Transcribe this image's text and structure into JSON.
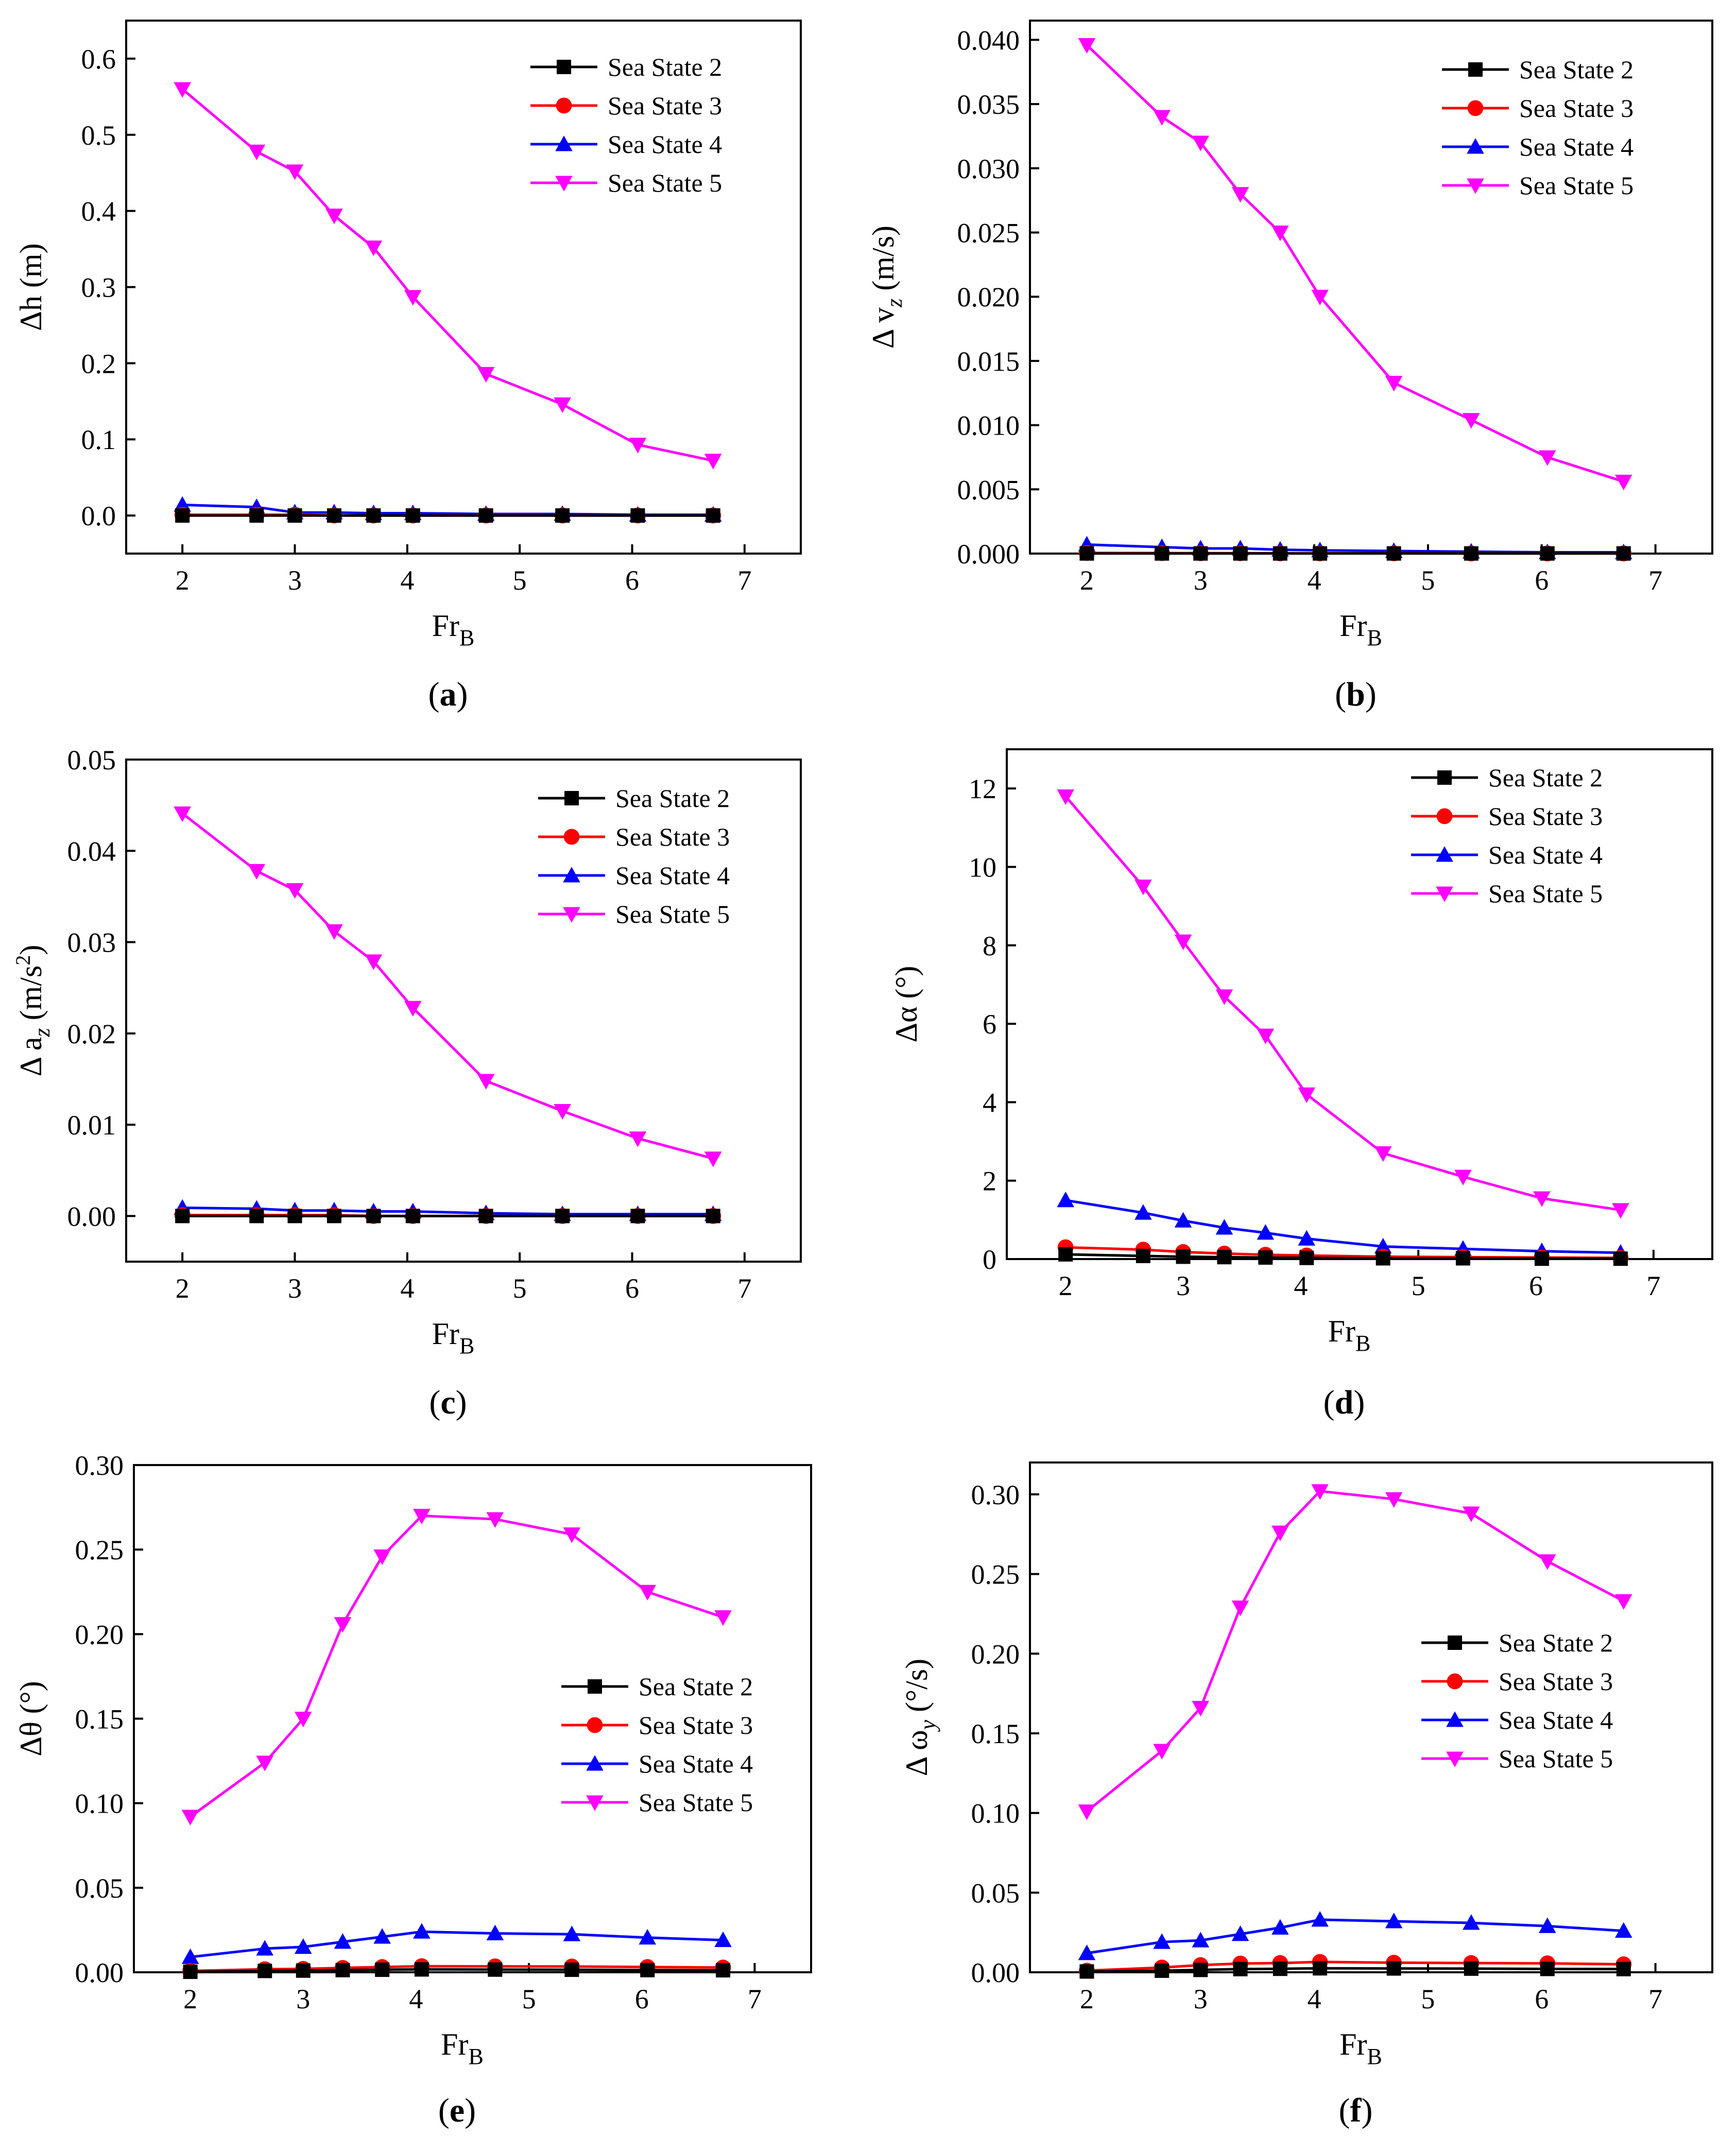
{
  "figure": {
    "legend_labels": [
      "Sea State 2",
      "Sea State 3",
      "Sea State 4",
      "Sea State 5"
    ],
    "series_colors": [
      "#000000",
      "#ff0000",
      "#0000ff",
      "#ff00ff"
    ],
    "series_markers": [
      "square",
      "circle",
      "triangle-up",
      "triangle-down"
    ]
  },
  "chart_data": [
    {
      "id": "a",
      "type": "line",
      "caption": "a",
      "xlabel": "Fr",
      "xlabel_sub": "B",
      "ylabel": "Δh (m)",
      "xlim": [
        1.5,
        7.5
      ],
      "xticks": [
        "2",
        "3",
        "4",
        "5",
        "6",
        "7"
      ],
      "ylim": [
        -0.05,
        0.65
      ],
      "yticks": [
        "0.0",
        "0.1",
        "0.2",
        "0.3",
        "0.4",
        "0.5",
        "0.6"
      ],
      "legend_position": "top-right",
      "x": [
        2.0,
        2.66,
        3.0,
        3.35,
        3.7,
        4.05,
        4.7,
        5.38,
        6.05,
        6.72
      ],
      "series": [
        {
          "name": "Sea State 2",
          "values": [
            0.0,
            0.0,
            0.0,
            0.0,
            0.0,
            0.0,
            0.0,
            0.0,
            0.0,
            0.0
          ]
        },
        {
          "name": "Sea State 3",
          "values": [
            0.001,
            0.001,
            0.001,
            0.0,
            0.0,
            0.0,
            0.0,
            0.0,
            0.0,
            0.0
          ]
        },
        {
          "name": "Sea State 4",
          "values": [
            0.014,
            0.011,
            0.004,
            0.004,
            0.003,
            0.003,
            0.002,
            0.002,
            0.001,
            0.001
          ]
        },
        {
          "name": "Sea State 5",
          "values": [
            0.56,
            0.478,
            0.452,
            0.394,
            0.352,
            0.287,
            0.186,
            0.146,
            0.093,
            0.072
          ]
        }
      ]
    },
    {
      "id": "b",
      "type": "line",
      "caption": "b",
      "xlabel": "Fr",
      "xlabel_sub": "B",
      "ylabel": "Δ v",
      "ylabel_sub": "z",
      "ylabel_suffix": " (m/s)",
      "xlim": [
        1.5,
        7.5
      ],
      "xticks": [
        "2",
        "3",
        "4",
        "5",
        "6",
        "7"
      ],
      "ylim": [
        0.0,
        0.0415
      ],
      "yticks": [
        "0.000",
        "0.005",
        "0.010",
        "0.015",
        "0.020",
        "0.025",
        "0.030",
        "0.035",
        "0.040"
      ],
      "legend_position": "top-right",
      "x": [
        2.0,
        2.66,
        3.0,
        3.35,
        3.7,
        4.05,
        4.7,
        5.38,
        6.05,
        6.72
      ],
      "series": [
        {
          "name": "Sea State 2",
          "values": [
            1e-05,
            1e-05,
            1e-05,
            1e-05,
            1e-05,
            1e-05,
            1e-05,
            1e-05,
            1e-05,
            1e-05
          ]
        },
        {
          "name": "Sea State 3",
          "values": [
            5e-05,
            4e-05,
            3e-05,
            3e-05,
            2e-05,
            2e-05,
            2e-05,
            1e-05,
            1e-05,
            1e-05
          ]
        },
        {
          "name": "Sea State 4",
          "values": [
            0.0007,
            0.0005,
            0.0004,
            0.0004,
            0.0003,
            0.00025,
            0.0002,
            0.00015,
            0.0001,
            0.0001
          ]
        },
        {
          "name": "Sea State 5",
          "values": [
            0.0396,
            0.034,
            0.032,
            0.028,
            0.025,
            0.02,
            0.0133,
            0.0104,
            0.0075,
            0.0056
          ]
        }
      ]
    },
    {
      "id": "c",
      "type": "line",
      "caption": "c",
      "xlabel": "Fr",
      "xlabel_sub": "B",
      "ylabel": "Δ a",
      "ylabel_sub": "z",
      "ylabel_suffix": " (m/s",
      "ylabel_sup": "2",
      "ylabel_close": ")",
      "xlim": [
        1.5,
        7.5
      ],
      "xticks": [
        "2",
        "3",
        "4",
        "5",
        "6",
        "7"
      ],
      "ylim": [
        -0.005,
        0.05
      ],
      "yticks": [
        "0.00",
        "0.01",
        "0.02",
        "0.03",
        "0.04",
        "0.05"
      ],
      "legend_position": "top-right",
      "x": [
        2.0,
        2.66,
        3.0,
        3.35,
        3.7,
        4.05,
        4.7,
        5.38,
        6.05,
        6.72
      ],
      "series": [
        {
          "name": "Sea State 2",
          "values": [
            0.0,
            0.0,
            0.0,
            0.0,
            0.0,
            0.0,
            0.0,
            0.0,
            0.0,
            0.0
          ]
        },
        {
          "name": "Sea State 3",
          "values": [
            0.0001,
            0.0001,
            0.0001,
            0.0001,
            0.0,
            0.0,
            0.0,
            0.0,
            0.0,
            0.0
          ]
        },
        {
          "name": "Sea State 4",
          "values": [
            0.0009,
            0.0008,
            0.0006,
            0.0006,
            0.0005,
            0.0005,
            0.0003,
            0.0002,
            0.0002,
            0.0002
          ]
        },
        {
          "name": "Sea State 5",
          "values": [
            0.0441,
            0.0378,
            0.0357,
            0.0312,
            0.0279,
            0.0228,
            0.0148,
            0.0115,
            0.0085,
            0.0063
          ]
        }
      ]
    },
    {
      "id": "d",
      "type": "line",
      "caption": "d",
      "xlabel": "Fr",
      "xlabel_sub": "B",
      "ylabel": "Δα (°)",
      "xlim": [
        1.5,
        7.5
      ],
      "xticks": [
        "2",
        "3",
        "4",
        "5",
        "6",
        "7"
      ],
      "ylim": [
        0,
        13
      ],
      "yticks": [
        "0",
        "2",
        "4",
        "6",
        "8",
        "10",
        "12"
      ],
      "legend_position": "top-right",
      "x": [
        2.0,
        2.66,
        3.0,
        3.35,
        3.7,
        4.05,
        4.7,
        5.38,
        6.05,
        6.72
      ],
      "series": [
        {
          "name": "Sea State 2",
          "values": [
            0.12,
            0.08,
            0.06,
            0.05,
            0.04,
            0.03,
            0.02,
            0.02,
            0.01,
            0.01
          ]
        },
        {
          "name": "Sea State 3",
          "values": [
            0.3,
            0.24,
            0.18,
            0.14,
            0.11,
            0.09,
            0.06,
            0.05,
            0.04,
            0.03
          ]
        },
        {
          "name": "Sea State 4",
          "values": [
            1.5,
            1.18,
            0.98,
            0.8,
            0.67,
            0.52,
            0.32,
            0.26,
            0.2,
            0.16
          ]
        },
        {
          "name": "Sea State 5",
          "values": [
            11.8,
            9.5,
            8.1,
            6.7,
            5.7,
            4.2,
            2.7,
            2.1,
            1.55,
            1.25
          ]
        }
      ]
    },
    {
      "id": "e",
      "type": "line",
      "caption": "e",
      "xlabel": "Fr",
      "xlabel_sub": "B",
      "ylabel": "Δθ (°)",
      "xlim": [
        1.5,
        7.5
      ],
      "xticks": [
        "2",
        "3",
        "4",
        "5",
        "6",
        "7"
      ],
      "ylim": [
        0.0,
        0.3
      ],
      "yticks": [
        "0.00",
        "0.05",
        "0.10",
        "0.15",
        "0.20",
        "0.25",
        "0.30"
      ],
      "legend_position": "center-right",
      "x": [
        2.0,
        2.66,
        3.0,
        3.35,
        3.7,
        4.05,
        4.7,
        5.38,
        6.05,
        6.72
      ],
      "series": [
        {
          "name": "Sea State 2",
          "values": [
            0.0003,
            0.0008,
            0.001,
            0.0013,
            0.0015,
            0.0017,
            0.0016,
            0.0015,
            0.0013,
            0.0012
          ]
        },
        {
          "name": "Sea State 3",
          "values": [
            0.0008,
            0.0018,
            0.002,
            0.0026,
            0.0031,
            0.0036,
            0.0035,
            0.0034,
            0.0031,
            0.0028
          ]
        },
        {
          "name": "Sea State 4",
          "values": [
            0.009,
            0.014,
            0.015,
            0.018,
            0.021,
            0.024,
            0.023,
            0.0225,
            0.0205,
            0.019
          ]
        },
        {
          "name": "Sea State 5",
          "values": [
            0.092,
            0.124,
            0.15,
            0.206,
            0.246,
            0.27,
            0.268,
            0.259,
            0.225,
            0.21
          ]
        }
      ]
    },
    {
      "id": "f",
      "type": "line",
      "caption": "f",
      "xlabel": "Fr",
      "xlabel_sub": "B",
      "ylabel": "Δ ω",
      "ylabel_sub": "y",
      "ylabel_suffix": " (°/s)",
      "xlim": [
        1.5,
        7.5
      ],
      "xticks": [
        "2",
        "3",
        "4",
        "5",
        "6",
        "7"
      ],
      "ylim": [
        0.0,
        0.32
      ],
      "yticks": [
        "0.00",
        "0.05",
        "0.10",
        "0.15",
        "0.20",
        "0.25",
        "0.30"
      ],
      "legend_position": "center-right",
      "x": [
        2.0,
        2.66,
        3.0,
        3.35,
        3.7,
        4.05,
        4.7,
        5.38,
        6.05,
        6.72
      ],
      "series": [
        {
          "name": "Sea State 2",
          "values": [
            0.0005,
            0.001,
            0.0015,
            0.002,
            0.0022,
            0.0025,
            0.0024,
            0.0023,
            0.0021,
            0.002
          ]
        },
        {
          "name": "Sea State 3",
          "values": [
            0.001,
            0.003,
            0.0045,
            0.0055,
            0.0058,
            0.0065,
            0.006,
            0.0058,
            0.0056,
            0.005
          ]
        },
        {
          "name": "Sea State 4",
          "values": [
            0.012,
            0.019,
            0.02,
            0.024,
            0.028,
            0.033,
            0.032,
            0.031,
            0.029,
            0.026
          ]
        },
        {
          "name": "Sea State 5",
          "values": [
            0.101,
            0.139,
            0.166,
            0.229,
            0.276,
            0.302,
            0.297,
            0.288,
            0.258,
            0.233
          ]
        }
      ]
    }
  ]
}
